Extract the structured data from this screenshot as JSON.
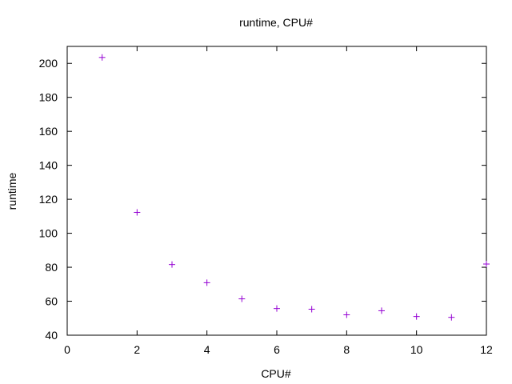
{
  "chart_data": {
    "type": "scatter",
    "title": "runtime, CPU#",
    "xlabel": "CPU#",
    "ylabel": "runtime",
    "xlim": [
      0,
      12
    ],
    "ylim": [
      40,
      210
    ],
    "xticks": [
      0,
      2,
      4,
      6,
      8,
      10,
      12
    ],
    "yticks": [
      40,
      60,
      80,
      100,
      120,
      140,
      160,
      180,
      200
    ],
    "grid": false,
    "legend": "none",
    "marker": "+",
    "color": "#9400d3",
    "series": [
      {
        "x": [
          1,
          2,
          3,
          4,
          5,
          6,
          7,
          8,
          9,
          10,
          11,
          12
        ],
        "y": [
          203.5,
          112.3,
          81.6,
          70.9,
          61.4,
          55.7,
          55.3,
          52.0,
          54.4,
          51.0,
          50.5,
          81.9
        ]
      }
    ]
  }
}
